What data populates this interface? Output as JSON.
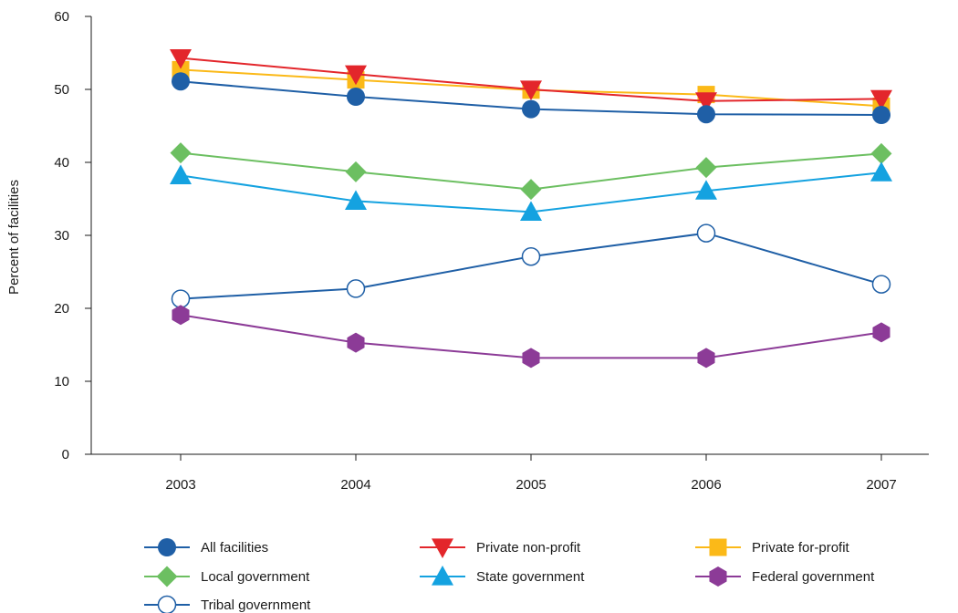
{
  "chart_data": {
    "type": "line",
    "title": "",
    "xlabel": "",
    "ylabel": "Percent of facilities",
    "ylim": [
      0,
      60
    ],
    "yticks": [
      "0",
      "10",
      "20",
      "30",
      "40",
      "50",
      "60"
    ],
    "categories": [
      "2003",
      "2004",
      "2005",
      "2006",
      "2007"
    ],
    "grid": false,
    "legend_position": "bottom",
    "series": [
      {
        "name": "All facilities",
        "color": "#1f5fa6",
        "marker": "circle",
        "values": [
          51.1,
          49.0,
          47.3,
          46.6,
          46.5
        ]
      },
      {
        "name": "Private non-profit",
        "color": "#e3262b",
        "marker": "triangle-down",
        "values": [
          54.3,
          52.1,
          50.0,
          48.4,
          48.7
        ]
      },
      {
        "name": "Private for-profit",
        "color": "#fbb918",
        "marker": "square",
        "values": [
          52.7,
          51.3,
          49.9,
          49.3,
          47.7
        ]
      },
      {
        "name": "Local government",
        "color": "#6cbf61",
        "marker": "diamond",
        "values": [
          41.3,
          38.7,
          36.3,
          39.3,
          41.2
        ]
      },
      {
        "name": "State government",
        "color": "#14a2e0",
        "marker": "triangle-up",
        "values": [
          38.2,
          34.7,
          33.2,
          36.1,
          38.6
        ]
      },
      {
        "name": "Federal government",
        "color": "#8c3b97",
        "marker": "hexagon",
        "values": [
          19.1,
          15.3,
          13.2,
          13.2,
          16.7
        ]
      },
      {
        "name": "Tribal government",
        "color": "#1f5fa6",
        "marker": "circle-open",
        "values": [
          21.3,
          22.7,
          27.1,
          30.3,
          23.3
        ]
      }
    ]
  }
}
